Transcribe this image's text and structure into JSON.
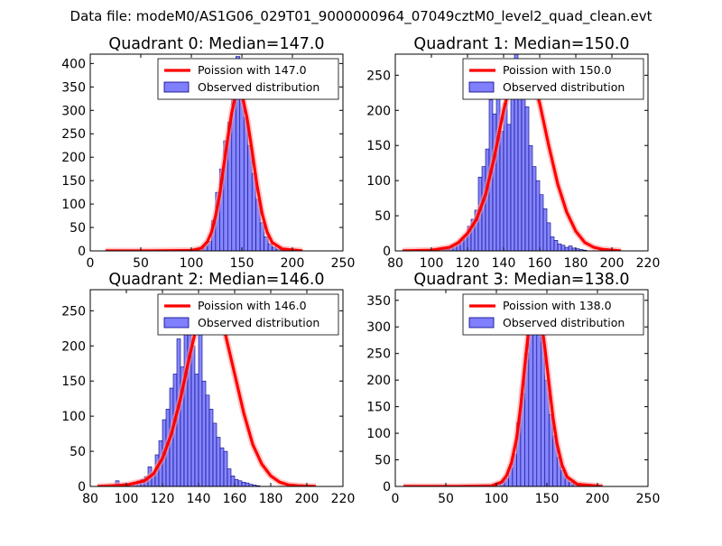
{
  "suptitle": "Data file: modeM0/AS1G06_029T01_9000000964_07049cztM0_level2_quad_clean.evt",
  "colors": {
    "bars": "#7f7fff",
    "bar_edge": "#00007f",
    "curve": "#ff0000",
    "curve_glow": "#ff9a9a"
  },
  "chart_data": [
    {
      "type": "bar",
      "title": "Quadrant 0: Median=147.0",
      "xlim": [
        0,
        250
      ],
      "ylim": [
        0,
        420
      ],
      "xticks": [
        0,
        50,
        100,
        150,
        200,
        250
      ],
      "yticks": [
        0,
        50,
        100,
        150,
        200,
        250,
        300,
        350,
        400
      ],
      "legend": {
        "curve_label": "Poission with 147.0",
        "bars_label": "Observed distribution",
        "location": "upper-right"
      },
      "bars": {
        "bin_width": 4,
        "edges_start": 100,
        "counts": [
          1,
          3,
          5,
          10,
          20,
          65,
          125,
          175,
          235,
          275,
          335,
          415,
          345,
          285,
          225,
          165,
          110,
          60,
          30,
          15,
          8,
          4,
          2,
          1
        ]
      },
      "curve": {
        "x": [
          15,
          60,
          100,
          110,
          116,
          120,
          124,
          128,
          132,
          136,
          140,
          143,
          147,
          151,
          155,
          160,
          165,
          170,
          175,
          180,
          190,
          210
        ],
        "y": [
          0,
          0,
          1,
          6,
          20,
          40,
          75,
          120,
          180,
          240,
          295,
          325,
          340,
          325,
          285,
          215,
          140,
          80,
          40,
          18,
          4,
          0
        ]
      }
    },
    {
      "type": "bar",
      "title": "Quadrant 1: Median=150.0",
      "xlim": [
        80,
        220
      ],
      "ylim": [
        0,
        280
      ],
      "xticks": [
        80,
        100,
        120,
        140,
        160,
        180,
        200,
        220
      ],
      "yticks": [
        0,
        50,
        100,
        150,
        200,
        250
      ],
      "legend": {
        "curve_label": "Poission with 150.0",
        "bars_label": "Observed distribution",
        "location": "upper-right"
      },
      "bars": {
        "bin_width": 2,
        "edges_start": 106,
        "counts": [
          4,
          2,
          5,
          8,
          12,
          15,
          22,
          35,
          45,
          58,
          105,
          120,
          145,
          215,
          195,
          225,
          170,
          210,
          180,
          250,
          280,
          240,
          220,
          205,
          150,
          120,
          100,
          80,
          60,
          40,
          20,
          15,
          10,
          8,
          5,
          7,
          4,
          3,
          2,
          1
        ]
      },
      "curve": {
        "x": [
          84,
          100,
          110,
          115,
          120,
          125,
          130,
          135,
          140,
          145,
          150,
          155,
          160,
          165,
          170,
          175,
          180,
          185,
          190,
          195,
          205
        ],
        "y": [
          0,
          1,
          5,
          12,
          25,
          45,
          80,
          135,
          200,
          250,
          270,
          255,
          210,
          150,
          95,
          55,
          28,
          12,
          5,
          2,
          0
        ]
      }
    },
    {
      "type": "bar",
      "title": "Quadrant 2: Median=146.0",
      "xlim": [
        80,
        220
      ],
      "ylim": [
        0,
        280
      ],
      "xticks": [
        80,
        100,
        120,
        140,
        160,
        180,
        200,
        220
      ],
      "yticks": [
        0,
        50,
        100,
        150,
        200,
        250
      ],
      "legend": {
        "curve_label": "Poission with 146.0",
        "bars_label": "Observed distribution",
        "location": "upper-right"
      },
      "bars": {
        "bin_width": 2,
        "edges_start": 94,
        "counts": [
          8,
          3,
          4,
          2,
          4,
          5,
          8,
          10,
          14,
          28,
          18,
          45,
          65,
          95,
          110,
          140,
          160,
          210,
          170,
          245,
          225,
          200,
          160,
          270,
          150,
          130,
          110,
          90,
          70,
          55,
          50,
          25,
          15,
          10,
          8,
          6,
          5,
          3,
          2,
          1
        ]
      },
      "curve": {
        "x": [
          84,
          100,
          110,
          115,
          120,
          125,
          130,
          135,
          140,
          145,
          150,
          155,
          160,
          165,
          170,
          175,
          180,
          185,
          190,
          195,
          205
        ],
        "y": [
          0,
          2,
          8,
          18,
          40,
          75,
          125,
          185,
          240,
          265,
          255,
          215,
          160,
          105,
          60,
          32,
          15,
          6,
          2,
          1,
          0
        ]
      }
    },
    {
      "type": "bar",
      "title": "Quadrant 3: Median=138.0",
      "xlim": [
        0,
        250
      ],
      "ylim": [
        0,
        370
      ],
      "xticks": [
        0,
        50,
        100,
        150,
        200,
        250
      ],
      "yticks": [
        0,
        50,
        100,
        150,
        200,
        250,
        300,
        350
      ],
      "legend": {
        "curve_label": "Poission with 138.0",
        "bars_label": "Observed distribution",
        "location": "upper-right"
      },
      "bars": {
        "bin_width": 4,
        "edges_start": 96,
        "counts": [
          2,
          6,
          8,
          15,
          35,
          60,
          120,
          175,
          250,
          300,
          360,
          345,
          280,
          200,
          135,
          95,
          55,
          30,
          15,
          8,
          4,
          1
        ]
      },
      "curve": {
        "x": [
          8,
          60,
          95,
          105,
          110,
          115,
          120,
          124,
          128,
          132,
          136,
          138,
          140,
          144,
          148,
          152,
          156,
          160,
          165,
          170,
          180,
          205
        ],
        "y": [
          0,
          0,
          1,
          8,
          20,
          45,
          90,
          150,
          225,
          295,
          340,
          350,
          345,
          315,
          260,
          195,
          130,
          80,
          40,
          18,
          4,
          0
        ]
      }
    }
  ]
}
